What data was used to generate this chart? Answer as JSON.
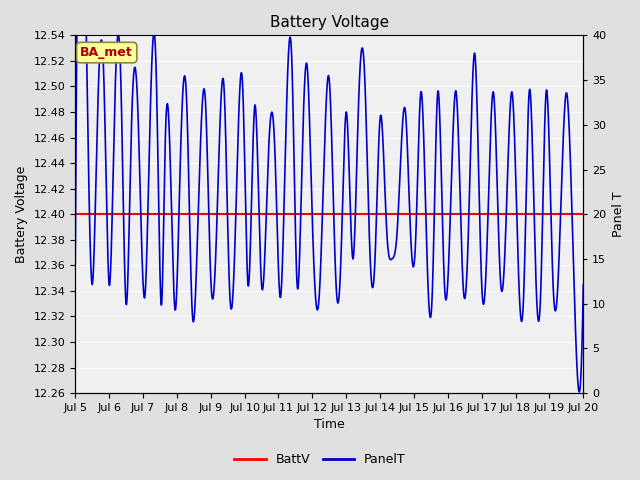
{
  "title": "Battery Voltage",
  "xlabel": "Time",
  "ylabel_left": "Battery Voltage",
  "ylabel_right": "Panel T",
  "legend_labels": [
    "BattV",
    "PanelT"
  ],
  "batt_v": 12.4,
  "x_start": 5,
  "x_end": 20,
  "ylim_left": [
    12.26,
    12.54
  ],
  "ylim_right": [
    0,
    40
  ],
  "x_ticks": [
    5,
    6,
    7,
    8,
    9,
    10,
    11,
    12,
    13,
    14,
    15,
    16,
    17,
    18,
    19,
    20
  ],
  "x_tick_labels": [
    "Jul 5",
    "Jul 6",
    "Jul 7",
    "Jul 8",
    "Jul 9",
    "Jul 10",
    "Jul 11",
    "Jul 12",
    "Jul 13",
    "Jul 14",
    "Jul 15",
    "Jul 16",
    "Jul 17",
    "Jul 18",
    "Jul 19",
    "Jul 20"
  ],
  "y_ticks_left": [
    12.26,
    12.28,
    12.3,
    12.32,
    12.34,
    12.36,
    12.38,
    12.4,
    12.42,
    12.44,
    12.46,
    12.48,
    12.5,
    12.52,
    12.54
  ],
  "y_ticks_right": [
    0,
    5,
    10,
    15,
    20,
    25,
    30,
    35,
    40
  ],
  "line_color_batt": "#FF0000",
  "line_color_panel": "#0000CC",
  "bg_color": "#E0E0E0",
  "plot_bg_color": "#F0F0F0",
  "annotation_text": "BA_met",
  "annotation_color": "#AA0000",
  "annotation_bg": "#FFFF99",
  "annotation_border": "#888844",
  "title_fontsize": 11,
  "axis_fontsize": 9,
  "tick_fontsize": 8,
  "figwidth": 6.4,
  "figheight": 4.8,
  "dpi": 100,
  "panel_peaks": [
    [
      5.0,
      12.36
    ],
    [
      5.35,
      12.5
    ],
    [
      5.5,
      12.345
    ],
    [
      5.65,
      12.47
    ],
    [
      5.85,
      12.5
    ],
    [
      6.0,
      12.345
    ],
    [
      6.15,
      12.47
    ],
    [
      6.35,
      12.5
    ],
    [
      6.5,
      12.33
    ],
    [
      6.65,
      12.46
    ],
    [
      6.85,
      12.48
    ],
    [
      7.05,
      12.335
    ],
    [
      7.2,
      12.465
    ],
    [
      7.4,
      12.5
    ],
    [
      7.55,
      12.33
    ],
    [
      7.65,
      12.45
    ],
    [
      7.8,
      12.445
    ],
    [
      7.95,
      12.325
    ],
    [
      8.1,
      12.44
    ],
    [
      8.3,
      12.48
    ],
    [
      8.45,
      12.325
    ],
    [
      8.6,
      12.375
    ],
    [
      8.85,
      12.485
    ],
    [
      9.0,
      12.35
    ],
    [
      9.15,
      12.37
    ],
    [
      9.4,
      12.495
    ],
    [
      9.55,
      12.345
    ],
    [
      9.7,
      12.365
    ],
    [
      9.95,
      12.495
    ],
    [
      10.1,
      12.345
    ],
    [
      10.3,
      12.485
    ],
    [
      10.5,
      12.345
    ],
    [
      10.7,
      12.445
    ],
    [
      10.9,
      12.445
    ],
    [
      11.05,
      12.335
    ],
    [
      11.2,
      12.445
    ],
    [
      11.4,
      12.515
    ],
    [
      11.55,
      12.345
    ],
    [
      11.7,
      12.445
    ],
    [
      11.85,
      12.515
    ],
    [
      12.0,
      12.395
    ],
    [
      12.2,
      12.335
    ],
    [
      12.35,
      12.445
    ],
    [
      12.5,
      12.505
    ],
    [
      12.7,
      12.345
    ],
    [
      12.85,
      12.37
    ],
    [
      13.0,
      12.48
    ],
    [
      13.2,
      12.365
    ],
    [
      13.35,
      12.475
    ],
    [
      13.55,
      12.505
    ],
    [
      13.7,
      12.37
    ],
    [
      13.85,
      12.365
    ],
    [
      14.0,
      12.475
    ],
    [
      14.2,
      12.385
    ],
    [
      14.35,
      12.365
    ],
    [
      14.5,
      12.385
    ],
    [
      14.75,
      12.48
    ],
    [
      14.9,
      12.385
    ],
    [
      15.05,
      12.38
    ],
    [
      15.2,
      12.495
    ],
    [
      15.4,
      12.355
    ],
    [
      15.55,
      12.345
    ],
    [
      15.7,
      12.495
    ],
    [
      15.9,
      12.345
    ],
    [
      16.05,
      12.38
    ],
    [
      16.25,
      12.495
    ],
    [
      16.45,
      12.345
    ],
    [
      16.6,
      12.38
    ],
    [
      16.8,
      12.525
    ],
    [
      17.0,
      12.345
    ],
    [
      17.15,
      12.37
    ],
    [
      17.35,
      12.495
    ],
    [
      17.55,
      12.35
    ],
    [
      17.7,
      12.38
    ],
    [
      17.9,
      12.495
    ],
    [
      18.1,
      12.345
    ],
    [
      18.25,
      12.345
    ],
    [
      18.4,
      12.495
    ],
    [
      18.6,
      12.35
    ],
    [
      18.75,
      12.345
    ],
    [
      18.9,
      12.495
    ],
    [
      19.1,
      12.35
    ],
    [
      19.25,
      12.345
    ],
    [
      19.5,
      12.495
    ],
    [
      19.7,
      12.37
    ],
    [
      20.0,
      12.345
    ]
  ]
}
